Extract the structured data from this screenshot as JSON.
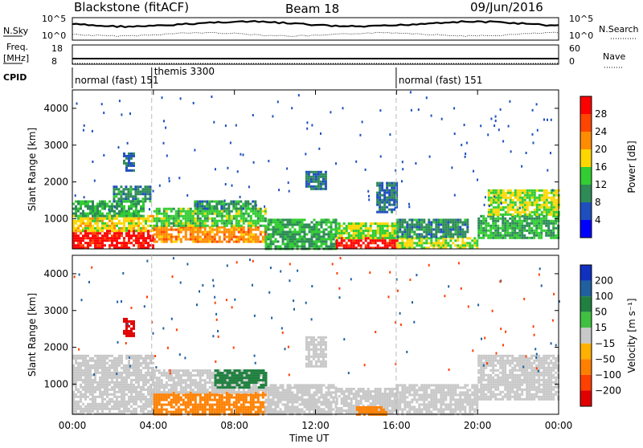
{
  "header": {
    "station": "Blackstone (fitACF)",
    "beam": "Beam 18",
    "date": "09/Jun/2016"
  },
  "panels": {
    "nsky_label": "N.Sky",
    "nsearch_label": "N.Search",
    "freq_label_line1": "Freq.",
    "freq_label_line2": "[MHz]",
    "nave_label": "Nave",
    "cpid_label": "CPID",
    "nsky_ticks": [
      "10^5",
      "10^0"
    ],
    "nsearch_ticks": [
      "10^5",
      "10^0"
    ],
    "freq_ticks": [
      "18",
      "8"
    ],
    "nave_ticks": [
      "60",
      "0"
    ]
  },
  "cpid_segments": [
    {
      "label": "normal (fast) 151",
      "start": "00:00",
      "end": "03:55"
    },
    {
      "label": "themis 3300",
      "start": "03:55",
      "end": "03:59"
    },
    {
      "label": "normal (fast) 151",
      "start": "15:59",
      "end": "24:00"
    }
  ],
  "colors": {
    "power_scale": [
      "#0000ff",
      "#1f4fbf",
      "#2e8b57",
      "#32cd32",
      "#ffd700",
      "#ff8c00",
      "#ff4500",
      "#ff0000"
    ],
    "velocity_scale": [
      "#1030c0",
      "#2060a0",
      "#208040",
      "#40c040",
      "#c8c8c8",
      "#ffb000",
      "#ff8000",
      "#ff4000",
      "#e00000"
    ]
  },
  "chart_data": [
    {
      "type": "heatmap",
      "panel": "power",
      "ylabel": "Slant Range [km]",
      "yticks": [
        "1000",
        "2000",
        "3000",
        "4000"
      ],
      "colorbar_label": "Power [dB]",
      "colorbar_ticks": [
        "4",
        "8",
        "12",
        "16",
        "20",
        "24",
        "28"
      ],
      "ylim": [
        180,
        4500
      ],
      "blobs": [
        {
          "t0": 0.0,
          "t1": 4.0,
          "r0": 200,
          "r1": 700,
          "v": 30
        },
        {
          "t0": 0.0,
          "t1": 4.0,
          "r0": 700,
          "r1": 1100,
          "v": 18
        },
        {
          "t0": 0.0,
          "t1": 3.5,
          "r0": 1100,
          "r1": 1500,
          "v": 12
        },
        {
          "t0": 2.0,
          "t1": 3.8,
          "r0": 1500,
          "r1": 1900,
          "v": 10
        },
        {
          "t0": 2.5,
          "t1": 3.0,
          "r0": 2300,
          "r1": 2800,
          "v": 8
        },
        {
          "t0": 4.0,
          "t1": 9.5,
          "r0": 400,
          "r1": 800,
          "v": 22
        },
        {
          "t0": 4.0,
          "t1": 9.5,
          "r0": 800,
          "r1": 1300,
          "v": 14
        },
        {
          "t0": 6.0,
          "t1": 9.0,
          "r0": 1300,
          "r1": 1500,
          "v": 10
        },
        {
          "t0": 9.5,
          "t1": 13.0,
          "r0": 200,
          "r1": 1000,
          "v": 12
        },
        {
          "t0": 13.0,
          "t1": 16.0,
          "r0": 200,
          "r1": 500,
          "v": 30
        },
        {
          "t0": 13.0,
          "t1": 16.0,
          "r0": 500,
          "r1": 900,
          "v": 16
        },
        {
          "t0": 16.0,
          "t1": 20.0,
          "r0": 200,
          "r1": 500,
          "v": 16
        },
        {
          "t0": 16.0,
          "t1": 19.5,
          "r0": 500,
          "r1": 1000,
          "v": 10
        },
        {
          "t0": 20.0,
          "t1": 24.0,
          "r0": 500,
          "r1": 1100,
          "v": 12
        },
        {
          "t0": 20.5,
          "t1": 24.0,
          "r0": 1100,
          "r1": 1800,
          "v": 16
        },
        {
          "t0": 11.5,
          "t1": 12.5,
          "r0": 1800,
          "r1": 2300,
          "v": 8
        },
        {
          "t0": 15.0,
          "t1": 16.0,
          "r0": 1200,
          "r1": 2000,
          "v": 8
        }
      ]
    },
    {
      "type": "heatmap",
      "panel": "velocity",
      "ylabel": "Slant Range [km]",
      "yticks": [
        "1000",
        "2000",
        "3000",
        "4000"
      ],
      "xticks": [
        "00:00",
        "04:00",
        "08:00",
        "12:00",
        "16:00",
        "20:00",
        "00:00"
      ],
      "xlabel": "Time UT",
      "colorbar_label": "Velocity [m s⁻¹]",
      "colorbar_ticks": [
        "200",
        "100",
        "50",
        "15",
        "−15",
        "−50",
        "−100",
        "−200"
      ],
      "ylim": [
        180,
        4500
      ],
      "blobs": [
        {
          "t0": 0.0,
          "t1": 4.0,
          "r0": 200,
          "r1": 1800,
          "v": 0
        },
        {
          "t0": 2.5,
          "t1": 3.0,
          "r0": 2300,
          "r1": 2800,
          "v": -220
        },
        {
          "t0": 4.0,
          "t1": 9.5,
          "r0": 200,
          "r1": 800,
          "v": -60
        },
        {
          "t0": 4.0,
          "t1": 9.5,
          "r0": 800,
          "r1": 1400,
          "v": 0
        },
        {
          "t0": 7.0,
          "t1": 9.5,
          "r0": 900,
          "r1": 1400,
          "v": 40
        },
        {
          "t0": 9.5,
          "t1": 13.0,
          "r0": 200,
          "r1": 1000,
          "v": 0
        },
        {
          "t0": 11.5,
          "t1": 12.5,
          "r0": 1500,
          "r1": 2300,
          "v": 0
        },
        {
          "t0": 13.0,
          "t1": 16.0,
          "r0": 200,
          "r1": 900,
          "v": 0
        },
        {
          "t0": 14.0,
          "t1": 15.5,
          "r0": 200,
          "r1": 400,
          "v": -60
        },
        {
          "t0": 16.0,
          "t1": 20.0,
          "r0": 200,
          "r1": 1000,
          "v": 0
        },
        {
          "t0": 20.0,
          "t1": 24.0,
          "r0": 600,
          "r1": 1800,
          "v": 0
        }
      ]
    }
  ]
}
